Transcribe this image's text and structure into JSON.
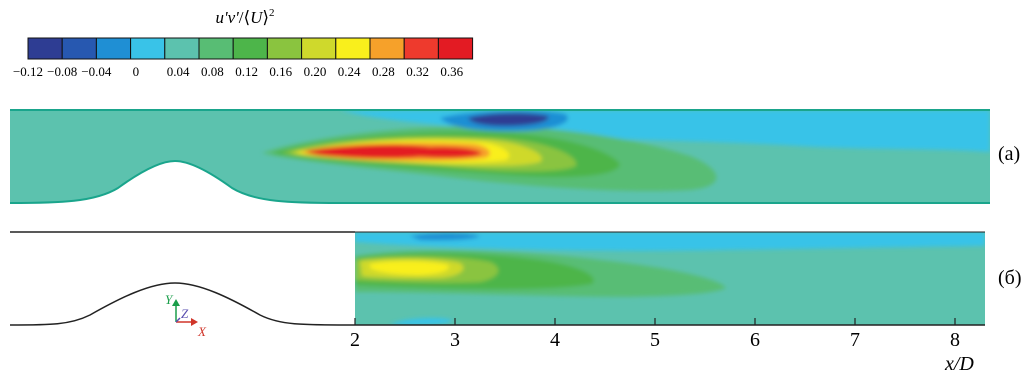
{
  "chart_data": {
    "type": "heatmap",
    "colorbar": {
      "label_parts": {
        "u": "u",
        "prime1": "'",
        "v": "v",
        "prime2": "'",
        "slash": "/⟨",
        "U": "U",
        "close": "⟩",
        "sup": "2"
      },
      "colors": [
        "#2e3d93",
        "#2758b0",
        "#1f8fd4",
        "#39c3e8",
        "#5cc2ae",
        "#58bd74",
        "#4db54a",
        "#8ac43f",
        "#cfd92c",
        "#f9ef1c",
        "#f6a12a",
        "#ee3a2d",
        "#e31b23"
      ],
      "tick_labels": [
        "−0.12",
        "−0.08",
        "−0.04",
        "0",
        "0.04",
        "0.08",
        "0.12",
        "0.16",
        "0.20",
        "0.24",
        "0.28",
        "0.32",
        "0.36"
      ]
    },
    "panels": [
      {
        "id": "a",
        "label": "(а)"
      },
      {
        "id": "b",
        "label": "(б)"
      }
    ],
    "x_axis": {
      "label": "x/D",
      "range": [
        2,
        8.3
      ],
      "ticks": [
        2,
        3,
        4,
        5,
        6,
        7,
        8
      ],
      "tick_labels": [
        "2",
        "3",
        "4",
        "5",
        "6",
        "7",
        "8"
      ]
    },
    "axes_triad": {
      "x": "X",
      "y": "Y",
      "z": "Z"
    }
  }
}
